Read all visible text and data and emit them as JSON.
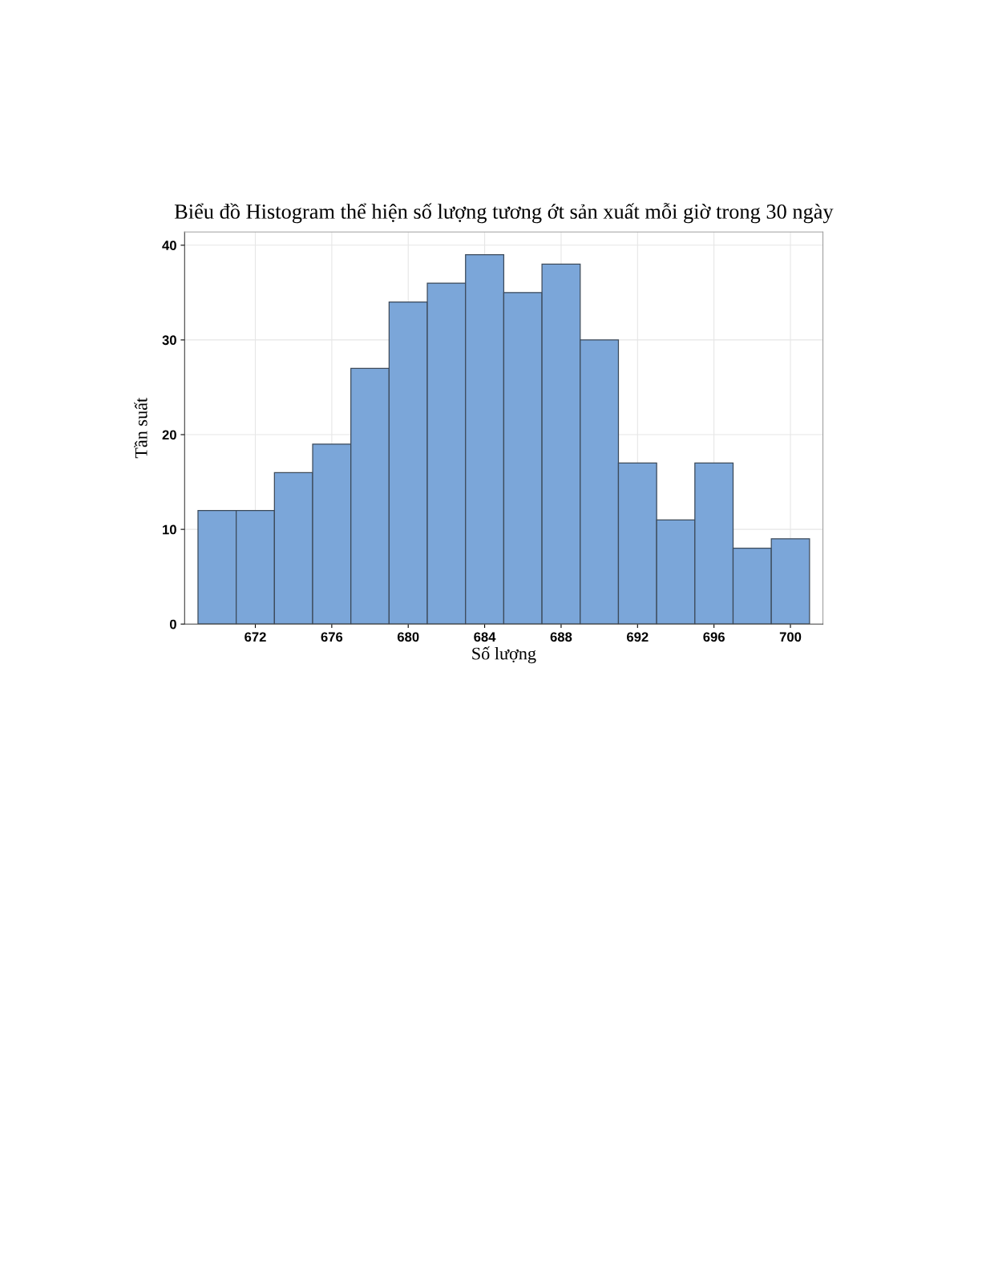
{
  "chart_data": {
    "type": "histogram",
    "title": "Biểu đồ Histogram thể hiện số lượng tương ớt sản xuất mỗi giờ trong 30 ngày",
    "xlabel": "Số lượng",
    "ylabel": "Tần suất",
    "bins": [
      669,
      671,
      673,
      675,
      677,
      679,
      681,
      683,
      685,
      687,
      689,
      691,
      693,
      695,
      697,
      699,
      701
    ],
    "values": [
      12,
      12,
      16,
      19,
      27,
      34,
      36,
      39,
      35,
      38,
      30,
      17,
      11,
      17,
      8,
      9
    ],
    "color": "#7ba6d9",
    "xlim": [
      668.3,
      701.7
    ],
    "xticks": [
      672,
      676,
      680,
      684,
      688,
      692,
      696,
      700
    ],
    "ylim": [
      0,
      41.4
    ],
    "yticks": [
      0,
      10,
      20,
      30,
      40
    ],
    "grid": true
  }
}
